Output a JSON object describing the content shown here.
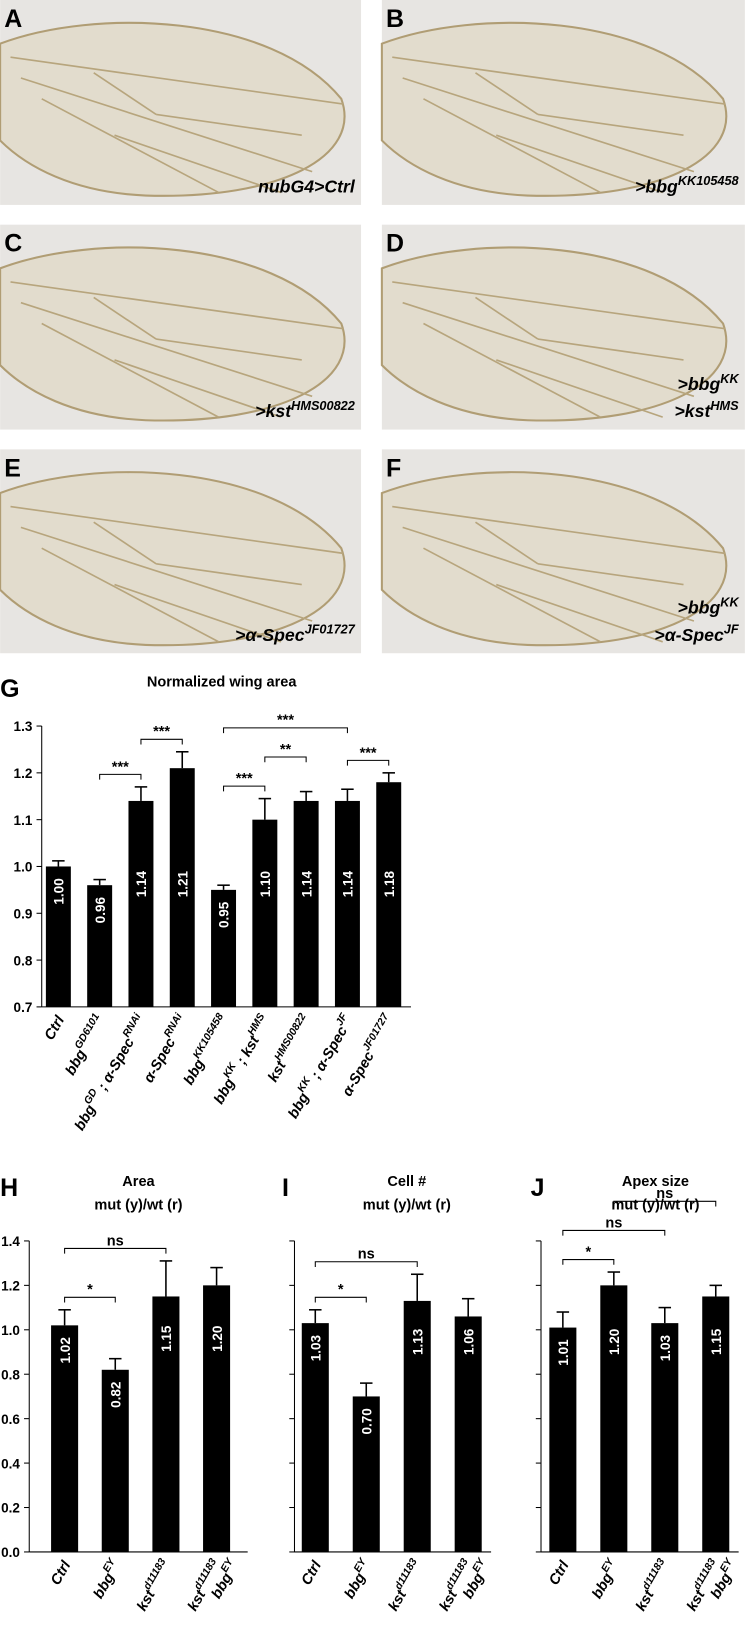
{
  "wing_panels": [
    {
      "letter": "A",
      "label": [
        [
          "nubG4>Ctrl"
        ]
      ]
    },
    {
      "letter": "B",
      "label": [
        [
          ">bbg",
          "KK105458"
        ]
      ]
    },
    {
      "letter": "C",
      "label": [
        [
          ">kst",
          "HMS00822"
        ]
      ]
    },
    {
      "letter": "D",
      "label": [
        [
          ">bbg",
          "KK"
        ],
        [
          ">kst",
          "HMS"
        ]
      ]
    },
    {
      "letter": "E",
      "label": [
        [
          ">α-Spec",
          "JF01727"
        ]
      ]
    },
    {
      "letter": "F",
      "label": [
        [
          ">bbg",
          "KK"
        ],
        [
          ">α-Spec",
          "JF"
        ]
      ]
    }
  ],
  "chart_data": [
    {
      "type": "bar",
      "label": "G",
      "title": "Normalized wing area",
      "categories": [
        [
          [
            "Ctrl"
          ]
        ],
        [
          [
            "bbg",
            "GD6101"
          ]
        ],
        [
          [
            "bbg",
            "GD",
            " ; α-Spec",
            "RNAi"
          ]
        ],
        [
          [
            "α-Spec",
            "RNAi"
          ]
        ],
        [
          [
            "bbg",
            "KK105458"
          ]
        ],
        [
          [
            "bbg",
            "KK",
            " ; kst",
            "HMS"
          ]
        ],
        [
          [
            "kst",
            "HMS00822"
          ]
        ],
        [
          [
            "bbg",
            "KK",
            " ; α-Spec",
            "JF"
          ]
        ],
        [
          [
            "α-Spec",
            "JF01727"
          ]
        ]
      ],
      "values": [
        1.0,
        0.96,
        1.14,
        1.21,
        0.95,
        1.1,
        1.14,
        1.14,
        1.18
      ],
      "value_labels": [
        "1.00",
        "0.96",
        "1.14",
        "1.21",
        "0.95",
        "1.10",
        "1.14",
        "1.14",
        "1.18"
      ],
      "errors": [
        0.012,
        0.012,
        0.03,
        0.035,
        0.01,
        0.045,
        0.02,
        0.025,
        0.02
      ],
      "color": "#000000",
      "ylim": [
        0.7,
        1.3
      ],
      "yticks": [
        0.7,
        0.8,
        0.9,
        {
          "value": 1.0,
          "label": "1.0"
        },
        1.1,
        1.2,
        1.3
      ],
      "show_tick_labels": true,
      "significance": [
        {
          "from": 1,
          "to": 2,
          "label": "***"
        },
        {
          "from": 2,
          "to": 3,
          "label": "***"
        },
        {
          "from": 4,
          "to": 5,
          "label": "***"
        },
        {
          "from": 5,
          "to": 6,
          "label": "**"
        },
        {
          "from": 7,
          "to": 8,
          "label": "***"
        },
        {
          "from": 4,
          "to": 7,
          "label": "***"
        }
      ]
    },
    {
      "type": "bar",
      "label": "H",
      "title": "Area",
      "subtitle": "mut (y)/wt (r)",
      "categories": [
        [
          [
            "Ctrl"
          ]
        ],
        [
          [
            "bbg",
            "EY"
          ]
        ],
        [
          [
            "kst",
            "d11183"
          ]
        ],
        [
          [
            "kst",
            "d11183"
          ],
          [
            "bbg",
            "EY"
          ]
        ]
      ],
      "values": [
        1.02,
        0.82,
        1.15,
        1.2
      ],
      "value_labels": [
        "1.02",
        "0.82",
        "1.15",
        "1.20"
      ],
      "errors": [
        0.07,
        0.05,
        0.16,
        0.08
      ],
      "color": "#000000",
      "ylim": [
        0.0,
        1.4
      ],
      "yticks": [
        {
          "value": 0.0,
          "label": "0.0"
        },
        0.2,
        0.4,
        0.6,
        0.8,
        {
          "value": 1.0,
          "label": "1.0"
        },
        1.2,
        1.4
      ],
      "show_tick_labels": true,
      "significance": [
        {
          "from": 0,
          "to": 1,
          "label": "*"
        },
        {
          "from": 0,
          "to": 2,
          "label": "ns"
        }
      ]
    },
    {
      "type": "bar",
      "label": "I",
      "title": "Cell #",
      "subtitle": "mut (y)/wt (r)",
      "categories": [
        [
          [
            "Ctrl"
          ]
        ],
        [
          [
            "bbg",
            "EY"
          ]
        ],
        [
          [
            "kst",
            "d11183"
          ]
        ],
        [
          [
            "kst",
            "d11183"
          ],
          [
            "bbg",
            "EY"
          ]
        ]
      ],
      "values": [
        1.03,
        0.7,
        1.13,
        1.06
      ],
      "value_labels": [
        "1.03",
        "0.70",
        "1.13",
        "1.06"
      ],
      "errors": [
        0.06,
        0.06,
        0.12,
        0.08
      ],
      "color": "#000000",
      "ylim": [
        0.0,
        1.4
      ],
      "yticks": [
        0,
        0.2,
        0.4,
        0.6,
        0.8,
        1,
        1.2,
        1.4
      ],
      "show_tick_labels": false,
      "significance": [
        {
          "from": 0,
          "to": 1,
          "label": "*"
        },
        {
          "from": 0,
          "to": 2,
          "label": "ns"
        }
      ]
    },
    {
      "type": "bar",
      "label": "J",
      "title": "Apex size",
      "subtitle": "mut (y)/wt (r)",
      "categories": [
        [
          [
            "Ctrl"
          ]
        ],
        [
          [
            "bbg",
            "EY"
          ]
        ],
        [
          [
            "kst",
            "d11183"
          ]
        ],
        [
          [
            "kst",
            "d11183"
          ],
          [
            "bbg",
            "EY"
          ]
        ]
      ],
      "values": [
        1.01,
        1.2,
        1.03,
        1.15
      ],
      "value_labels": [
        "1.01",
        "1.20",
        "1.03",
        "1.15"
      ],
      "errors": [
        0.07,
        0.06,
        0.07,
        0.05
      ],
      "color": "#000000",
      "ylim": [
        0.0,
        1.4
      ],
      "yticks": [
        0,
        0.2,
        0.4,
        0.6,
        0.8,
        1,
        1.2,
        1.4
      ],
      "show_tick_labels": false,
      "significance": [
        {
          "from": 0,
          "to": 1,
          "label": "*"
        },
        {
          "from": 0,
          "to": 2,
          "label": "ns"
        },
        {
          "from": 1,
          "to": 3,
          "label": "ns"
        }
      ]
    }
  ]
}
